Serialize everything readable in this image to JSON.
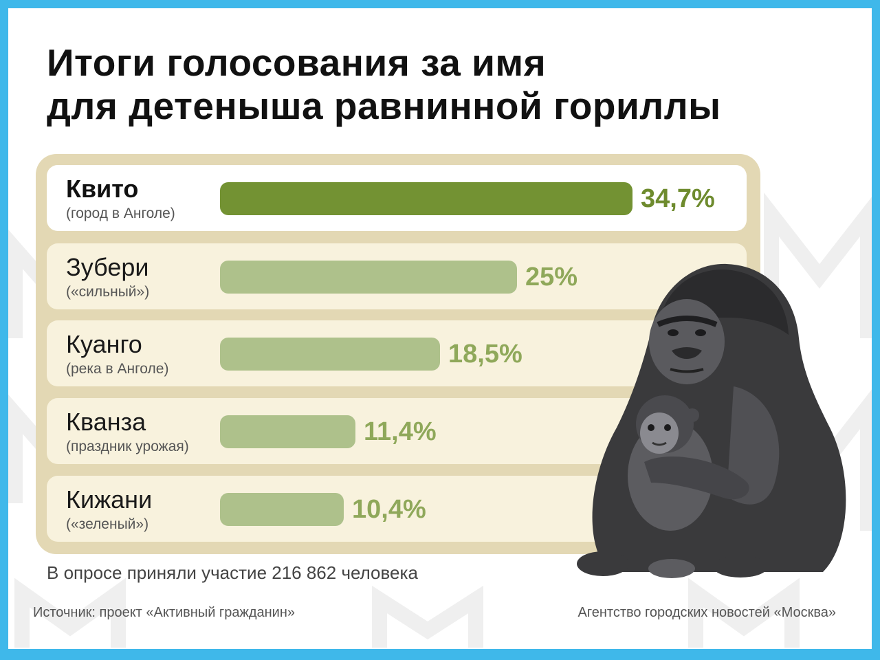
{
  "title": {
    "line1": "Итоги голосования за имя",
    "line2": "для детеныша равнинной гориллы"
  },
  "colors": {
    "frame": "#3fb8ea",
    "panel": "#e3d8b4",
    "row": "#f8f2dd",
    "bar_primary": "#739233",
    "bar_secondary": "#aec18b",
    "label_primary": "#6e8b2e",
    "label_secondary": "#8fa85a"
  },
  "chart_data": {
    "type": "bar",
    "orientation": "horizontal",
    "unit": "%",
    "categories": [
      "Квито",
      "Зубери",
      "Куанго",
      "Кванза",
      "Кижани"
    ],
    "subtitles": [
      "(город в Анголе)",
      "(«сильный»)",
      "(река в Анголе)",
      "(праздник урожая)",
      "(«зеленый»)"
    ],
    "values": [
      34.7,
      25,
      18.5,
      11.4,
      10.4
    ],
    "value_labels": [
      "34,7%",
      "25%",
      "18,5%",
      "11,4%",
      "10,4%"
    ],
    "highlight_index": 0
  },
  "participants": "В опросе приняли участие 216 862 человека",
  "source": "Источник: проект «Активный гражданин»",
  "agency": "Агентство городских новостей «Москва»",
  "illustration": "gorilla-mother-and-baby-icon"
}
